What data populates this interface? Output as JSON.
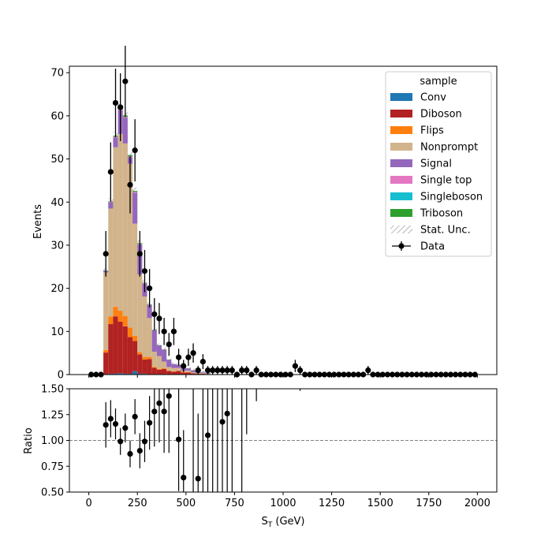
{
  "chart_data": [
    {
      "type": "bar",
      "stacked": true,
      "xlim": [
        -100,
        2100
      ],
      "ylim": [
        0,
        71.5
      ],
      "ylabel": "Events",
      "yticks": [
        0,
        10,
        20,
        30,
        40,
        50,
        60,
        70
      ],
      "bin_width": 25,
      "bin_centers": [
        87.5,
        112.5,
        137.5,
        162.5,
        187.5,
        212.5,
        237.5,
        262.5,
        287.5,
        312.5,
        337.5,
        362.5,
        387.5,
        412.5,
        437.5,
        462.5,
        487.5,
        512.5,
        537.5,
        562.5,
        587.5,
        612.5
      ],
      "series": [
        {
          "name": "Conv",
          "color": "#1f77b4",
          "values": [
            0.1,
            0.2,
            0.2,
            0.3,
            0.2,
            0.2,
            0.8,
            0.2,
            0.2,
            0.1,
            0.1,
            0.1,
            0.1,
            0.05,
            0.05,
            0.05,
            0.05,
            0.05,
            0,
            0,
            0,
            0
          ]
        },
        {
          "name": "Diboson",
          "color": "#b22222",
          "values": [
            5.0,
            11.5,
            13.3,
            12.0,
            11.0,
            8.5,
            7.0,
            4.5,
            3.3,
            3.5,
            1.5,
            1.0,
            1.2,
            0.8,
            0.6,
            0.8,
            0.4,
            0.4,
            0.3,
            0.2,
            0.2,
            0.1
          ]
        },
        {
          "name": "Flips",
          "color": "#ff7f0e",
          "values": [
            0.6,
            1.8,
            2.2,
            2.5,
            2.4,
            2.2,
            1.2,
            0.5,
            0.6,
            0.5,
            0.2,
            0.2,
            0.2,
            0.1,
            0.1,
            0.1,
            0.1,
            0.1,
            0,
            0,
            0,
            0
          ]
        },
        {
          "name": "Nonprompt",
          "color": "#d2b48c",
          "values": [
            18.0,
            25.0,
            37.0,
            41.0,
            40.0,
            38.0,
            26.0,
            18.0,
            14.0,
            9.0,
            3.5,
            3.0,
            1.5,
            0.8,
            0.8,
            0.6,
            0.3,
            0.4,
            0.2,
            0.2,
            0.2,
            0.1
          ]
        },
        {
          "name": "Signal",
          "color": "#9467bd",
          "values": [
            0.4,
            1.5,
            2.3,
            5.5,
            6.0,
            1.5,
            7.2,
            7.0,
            3.0,
            3.0,
            5.0,
            2.5,
            2.8,
            1.7,
            0.9,
            0.7,
            0.9,
            0.5,
            0.5,
            0.3,
            0.2,
            0.2
          ]
        },
        {
          "name": "Single top",
          "color": "#e377c2",
          "values": [
            0,
            0.1,
            0.2,
            0.2,
            0.2,
            0.2,
            0.2,
            0.1,
            0.1,
            0.1,
            0,
            0,
            0,
            0,
            0,
            0,
            0,
            0,
            0,
            0,
            0,
            0
          ]
        },
        {
          "name": "Singleboson",
          "color": "#17becf",
          "values": [
            0,
            0,
            0,
            0,
            0,
            0,
            0,
            0,
            0,
            0,
            0,
            0,
            0,
            0,
            0,
            0,
            0,
            0,
            0,
            0,
            0,
            0
          ]
        },
        {
          "name": "Triboson",
          "color": "#2ca02c",
          "values": [
            0.05,
            0.1,
            0.2,
            0.3,
            0.3,
            0.3,
            0.2,
            0.2,
            0.1,
            0.1,
            0.1,
            0.05,
            0.05,
            0.05,
            0,
            0,
            0,
            0,
            0,
            0,
            0,
            0
          ]
        }
      ],
      "data_points": [
        {
          "x": 12.5,
          "y": 0
        },
        {
          "x": 37.5,
          "y": 0
        },
        {
          "x": 62.5,
          "y": 0
        },
        {
          "x": 87.5,
          "y": 28
        },
        {
          "x": 112.5,
          "y": 47
        },
        {
          "x": 137.5,
          "y": 63
        },
        {
          "x": 162.5,
          "y": 62
        },
        {
          "x": 187.5,
          "y": 68
        },
        {
          "x": 212.5,
          "y": 44
        },
        {
          "x": 237.5,
          "y": 52
        },
        {
          "x": 262.5,
          "y": 28
        },
        {
          "x": 287.5,
          "y": 24
        },
        {
          "x": 312.5,
          "y": 20
        },
        {
          "x": 337.5,
          "y": 14
        },
        {
          "x": 362.5,
          "y": 13
        },
        {
          "x": 387.5,
          "y": 10
        },
        {
          "x": 412.5,
          "y": 7
        },
        {
          "x": 437.5,
          "y": 10
        },
        {
          "x": 462.5,
          "y": 4
        },
        {
          "x": 487.5,
          "y": 2
        },
        {
          "x": 512.5,
          "y": 4
        },
        {
          "x": 537.5,
          "y": 5
        },
        {
          "x": 562.5,
          "y": 1
        },
        {
          "x": 587.5,
          "y": 3
        },
        {
          "x": 612.5,
          "y": 1
        },
        {
          "x": 637.5,
          "y": 1
        },
        {
          "x": 662.5,
          "y": 1
        },
        {
          "x": 687.5,
          "y": 1
        },
        {
          "x": 712.5,
          "y": 1
        },
        {
          "x": 737.5,
          "y": 1
        },
        {
          "x": 762.5,
          "y": 0
        },
        {
          "x": 787.5,
          "y": 1
        },
        {
          "x": 812.5,
          "y": 1
        },
        {
          "x": 837.5,
          "y": 0
        },
        {
          "x": 862.5,
          "y": 1
        },
        {
          "x": 887.5,
          "y": 0
        },
        {
          "x": 912.5,
          "y": 0
        },
        {
          "x": 937.5,
          "y": 0
        },
        {
          "x": 962.5,
          "y": 0
        },
        {
          "x": 987.5,
          "y": 0
        },
        {
          "x": 1012.5,
          "y": 0
        },
        {
          "x": 1037.5,
          "y": 0
        },
        {
          "x": 1062.5,
          "y": 2
        },
        {
          "x": 1087.5,
          "y": 1
        },
        {
          "x": 1112.5,
          "y": 0
        },
        {
          "x": 1137.5,
          "y": 0
        },
        {
          "x": 1162.5,
          "y": 0
        },
        {
          "x": 1187.5,
          "y": 0
        },
        {
          "x": 1212.5,
          "y": 0
        },
        {
          "x": 1237.5,
          "y": 0
        },
        {
          "x": 1262.5,
          "y": 0
        },
        {
          "x": 1287.5,
          "y": 0
        },
        {
          "x": 1312.5,
          "y": 0
        },
        {
          "x": 1337.5,
          "y": 0
        },
        {
          "x": 1362.5,
          "y": 0
        },
        {
          "x": 1387.5,
          "y": 0
        },
        {
          "x": 1412.5,
          "y": 0
        },
        {
          "x": 1437.5,
          "y": 1
        },
        {
          "x": 1462.5,
          "y": 0
        },
        {
          "x": 1487.5,
          "y": 0
        },
        {
          "x": 1512.5,
          "y": 0
        },
        {
          "x": 1537.5,
          "y": 0
        },
        {
          "x": 1562.5,
          "y": 0
        },
        {
          "x": 1587.5,
          "y": 0
        },
        {
          "x": 1612.5,
          "y": 0
        },
        {
          "x": 1637.5,
          "y": 0
        },
        {
          "x": 1662.5,
          "y": 0
        },
        {
          "x": 1687.5,
          "y": 0
        },
        {
          "x": 1712.5,
          "y": 0
        },
        {
          "x": 1737.5,
          "y": 0
        },
        {
          "x": 1762.5,
          "y": 0
        },
        {
          "x": 1787.5,
          "y": 0
        },
        {
          "x": 1812.5,
          "y": 0
        },
        {
          "x": 1837.5,
          "y": 0
        },
        {
          "x": 1862.5,
          "y": 0
        },
        {
          "x": 1887.5,
          "y": 0
        },
        {
          "x": 1912.5,
          "y": 0
        },
        {
          "x": 1937.5,
          "y": 0
        },
        {
          "x": 1962.5,
          "y": 0
        },
        {
          "x": 1987.5,
          "y": 0
        }
      ],
      "legend": {
        "title": "sample",
        "placement": "top-right",
        "entries": [
          {
            "label": "Conv",
            "kind": "patch",
            "color": "#1f77b4"
          },
          {
            "label": "Diboson",
            "kind": "patch",
            "color": "#b22222"
          },
          {
            "label": "Flips",
            "kind": "patch",
            "color": "#ff7f0e"
          },
          {
            "label": "Nonprompt",
            "kind": "patch",
            "color": "#d2b48c"
          },
          {
            "label": "Signal",
            "kind": "patch",
            "color": "#9467bd"
          },
          {
            "label": "Single top",
            "kind": "patch",
            "color": "#e377c2"
          },
          {
            "label": "Singleboson",
            "kind": "patch",
            "color": "#17becf"
          },
          {
            "label": "Triboson",
            "kind": "patch",
            "color": "#2ca02c"
          },
          {
            "label": "Stat. Unc.",
            "kind": "hatch",
            "color": "#888888"
          },
          {
            "label": "Data",
            "kind": "marker",
            "color": "#000000"
          }
        ]
      }
    },
    {
      "type": "scatter",
      "xlim": [
        -100,
        2100
      ],
      "ylim": [
        0.5,
        1.5
      ],
      "xlabel": "S_T (GeV)",
      "ylabel": "Ratio",
      "yticks": [
        "0.50",
        "0.75",
        "1.00",
        "1.25",
        "1.50"
      ],
      "xticks": [
        "0",
        "250",
        "500",
        "750",
        "1000",
        "1250",
        "1500",
        "1750",
        "2000"
      ],
      "reference_line": 1.0,
      "points": [
        {
          "x": 87.5,
          "y": 1.15,
          "err": 0.22
        },
        {
          "x": 112.5,
          "y": 1.21,
          "err": 0.18
        },
        {
          "x": 137.5,
          "y": 1.16,
          "err": 0.15
        },
        {
          "x": 162.5,
          "y": 0.99,
          "err": 0.13
        },
        {
          "x": 187.5,
          "y": 1.12,
          "err": 0.14
        },
        {
          "x": 212.5,
          "y": 0.87,
          "err": 0.13
        },
        {
          "x": 237.5,
          "y": 1.23,
          "err": 0.17
        },
        {
          "x": 262.5,
          "y": 0.9,
          "err": 0.17
        },
        {
          "x": 287.5,
          "y": 0.99,
          "err": 0.2
        },
        {
          "x": 312.5,
          "y": 1.17,
          "err": 0.26
        },
        {
          "x": 337.5,
          "y": 1.28,
          "err": 0.34
        },
        {
          "x": 362.5,
          "y": 1.36,
          "err": 0.38
        },
        {
          "x": 387.5,
          "y": 1.28,
          "err": 0.4
        },
        {
          "x": 412.5,
          "y": 1.43,
          "err": 0.55
        },
        {
          "x": 462.5,
          "y": 1.01,
          "err": 0.5
        },
        {
          "x": 487.5,
          "y": 0.64,
          "err": 0.46
        },
        {
          "x": 562.5,
          "y": 0.63,
          "err": 0.63
        },
        {
          "x": 612.5,
          "y": 1.05,
          "err": 1.05
        },
        {
          "x": 687.5,
          "y": 1.18,
          "err": 1.18
        },
        {
          "x": 712.5,
          "y": 1.26,
          "err": 1.26
        }
      ],
      "error_only": [
        {
          "x": 537.5,
          "lo": 0.0,
          "hi": 2.5
        },
        {
          "x": 587.5,
          "lo": 0.0,
          "hi": 2.5
        },
        {
          "x": 637.5,
          "lo": 0.0,
          "hi": 2.5
        },
        {
          "x": 662.5,
          "lo": 0.0,
          "hi": 2.5
        },
        {
          "x": 737.5,
          "lo": 0.0,
          "hi": 2.5
        },
        {
          "x": 787.5,
          "lo": 0.0,
          "hi": 2.5
        },
        {
          "x": 812.5,
          "lo": 1.06,
          "hi": 2.5
        },
        {
          "x": 862.5,
          "lo": 1.38,
          "hi": 2.5
        },
        {
          "x": 1087.5,
          "lo": 1.48,
          "hi": 2.5
        }
      ]
    }
  ]
}
